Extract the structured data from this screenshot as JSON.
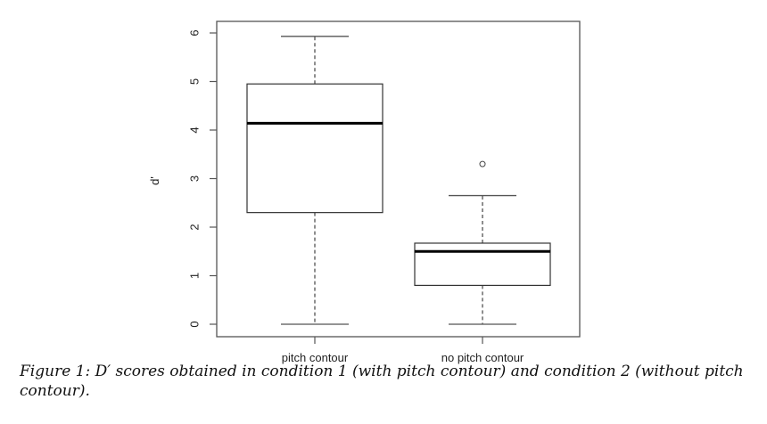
{
  "chart_data": {
    "type": "box",
    "title": "",
    "xlabel": "",
    "ylabel": "d'",
    "ylim": [
      0,
      6
    ],
    "yticks": [
      0,
      1,
      2,
      3,
      4,
      5,
      6
    ],
    "categories": [
      "pitch contour",
      "no pitch contour"
    ],
    "boxes": [
      {
        "name": "pitch contour",
        "whisker_low": 0.0,
        "q1": 2.3,
        "median": 4.14,
        "q3": 4.95,
        "whisker_high": 5.93,
        "outliers": []
      },
      {
        "name": "no pitch contour",
        "whisker_low": 0.0,
        "q1": 0.8,
        "median": 1.5,
        "q3": 1.67,
        "whisker_high": 2.65,
        "outliers": [
          3.3
        ]
      }
    ],
    "grid": false,
    "legend": null
  },
  "caption": {
    "text": "Figure 1: D′ scores obtained in condition 1 (with pitch contour) and condition 2 (without pitch contour)."
  },
  "colors": {
    "frame": "#555555",
    "box_line": "#333333",
    "median": "#000000",
    "text": "#222222"
  }
}
